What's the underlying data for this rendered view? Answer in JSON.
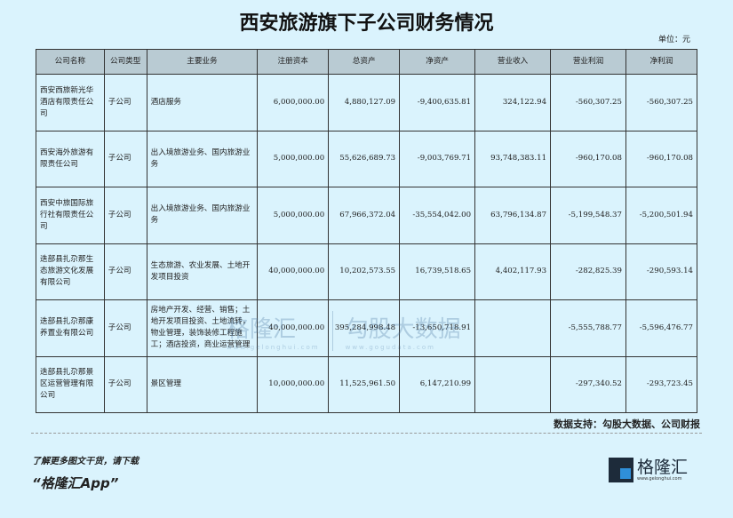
{
  "title": "西安旅游旗下子公司财务情况",
  "unit": "单位：元",
  "table": {
    "headers": [
      "公司名称",
      "公司类型",
      "主要业务",
      "注册资本",
      "总资产",
      "净资产",
      "营业收入",
      "营业利润",
      "净利润"
    ],
    "rows": [
      [
        "西安西旅新光华酒店有限责任公司",
        "子公司",
        "酒店服务",
        "6,000,000.00",
        "4,880,127.09",
        "-9,400,635.81",
        "324,122.94",
        "-560,307.25",
        "-560,307.25"
      ],
      [
        "西安海外旅游有限责任公司",
        "子公司",
        "出入境旅游业务、国内旅游业务",
        "5,000,000.00",
        "55,626,689.73",
        "-9,003,769.71",
        "93,748,383.11",
        "-960,170.08",
        "-960,170.08"
      ],
      [
        "西安中旅国际旅行社有限责任公司",
        "子公司",
        "出入境旅游业务、国内旅游业务",
        "5,000,000.00",
        "67,966,372.04",
        "-35,554,042.00",
        "63,796,134.87",
        "-5,199,548.37",
        "-5,200,501.94"
      ],
      [
        "迭部县扎尕那生态旅游文化发展有限公司",
        "子公司",
        "生态旅游、农业发展、土地开发项目投资",
        "40,000,000.00",
        "10,202,573.55",
        "16,739,518.65",
        "4,402,117.93",
        "-282,825.39",
        "-290,593.14"
      ],
      [
        "迭部县扎尕那康养置业有限公司",
        "子公司",
        "房地产开发、经营、销售；土地开发项目投资、土地流转，物业管理，装饰装修工程施工；酒店投资，商业运营管理",
        "40,000,000.00",
        "395,284,998.48",
        "-13,650,718.91",
        "",
        "-5,555,788.77",
        "-5,596,476.77"
      ],
      [
        "迭部县扎尕那景区运营管理有限公司",
        "子公司",
        "景区管理",
        "10,000,000.00",
        "11,525,961.50",
        "6,147,210.99",
        "",
        "-297,340.52",
        "-293,723.45"
      ]
    ]
  },
  "source": "数据支持：勾股大数据、公司财报",
  "promo": {
    "line1": "了解更多图文干货，请下载",
    "line2": "“格隆汇App”"
  },
  "logo": {
    "name": "格隆汇",
    "url": "www.gelonghui.com"
  },
  "watermark": {
    "left": "格隆汇",
    "left_url": "www.gelonghui.com",
    "right": "勾股大数据",
    "right_url": "www.gogudata.com"
  }
}
